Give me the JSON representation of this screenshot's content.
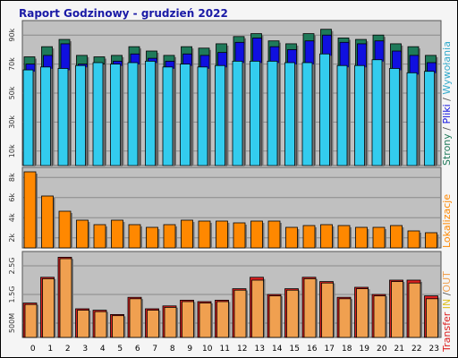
{
  "title": "Raport Godzinowy -  grudzień 2022",
  "colors": {
    "strony": "#1f7a5a",
    "pliki": "#1010e0",
    "wywolania": "#33ccee",
    "lokalizacje": "#ff8800",
    "transfer_in": "#dd2020",
    "transfer_out": "#f0a050",
    "panel_bg": "#c0c0c0",
    "grid": "#8a8a8a"
  },
  "panels": {
    "top": {
      "side_label": [
        {
          "text": "Strony",
          "color": "#1f7a5a"
        },
        {
          "text": " / ",
          "color": "#555555"
        },
        {
          "text": "Pliki",
          "color": "#1010e0"
        },
        {
          "text": " / ",
          "color": "#555555"
        },
        {
          "text": "Wywołania",
          "color": "#33aacc"
        }
      ],
      "y_ticks": [
        "90k",
        "70k",
        "50k",
        "30k",
        "10k"
      ]
    },
    "middle": {
      "side_label": [
        {
          "text": "Lokalizacje",
          "color": "#ff8800"
        }
      ],
      "y_ticks": [
        "8k",
        "6k",
        "4k",
        "2k"
      ]
    },
    "bottom": {
      "side_label": [
        {
          "text": "Transfer",
          "color": "#dd2020"
        },
        {
          "text": " IN ",
          "color": "#e0c020"
        },
        {
          "text": "/",
          "color": "#555555"
        },
        {
          "text": "OUT",
          "color": "#f0a050"
        }
      ],
      "y_ticks": [
        "2.5G",
        "1.5G",
        "500M"
      ]
    }
  },
  "chart_data": [
    {
      "type": "bar",
      "categories": [
        "0",
        "1",
        "2",
        "3",
        "4",
        "5",
        "6",
        "7",
        "8",
        "9",
        "10",
        "11",
        "12",
        "13",
        "14",
        "15",
        "16",
        "17",
        "18",
        "19",
        "20",
        "21",
        "22",
        "23"
      ],
      "ylim": [
        0,
        100000
      ],
      "series": [
        {
          "name": "Strony",
          "values": [
            75000,
            82000,
            87000,
            76000,
            75000,
            76000,
            82000,
            79000,
            76000,
            82000,
            81000,
            84000,
            89000,
            91000,
            86000,
            84000,
            91000,
            94000,
            88000,
            87000,
            90000,
            84000,
            82000,
            76000
          ]
        },
        {
          "name": "Pliki",
          "values": [
            70000,
            76000,
            84000,
            70000,
            70000,
            72000,
            77000,
            74000,
            72000,
            77000,
            76000,
            78000,
            85000,
            88000,
            82000,
            80000,
            86000,
            90000,
            85000,
            84000,
            86000,
            79000,
            76000,
            71000
          ]
        },
        {
          "name": "Wywołania",
          "values": [
            66000,
            68000,
            67000,
            69000,
            71000,
            70000,
            71000,
            72000,
            68000,
            70000,
            68000,
            69000,
            72000,
            72000,
            72000,
            71000,
            71000,
            77000,
            69000,
            69000,
            73000,
            67000,
            64000,
            65000
          ]
        }
      ]
    },
    {
      "type": "bar",
      "categories": [
        "0",
        "1",
        "2",
        "3",
        "4",
        "5",
        "6",
        "7",
        "8",
        "9",
        "10",
        "11",
        "12",
        "13",
        "14",
        "15",
        "16",
        "17",
        "18",
        "19",
        "20",
        "21",
        "22",
        "23"
      ],
      "ylim": [
        0,
        9000
      ],
      "series": [
        {
          "name": "Lokalizacje",
          "values": [
            8500,
            5800,
            4100,
            3100,
            2600,
            3100,
            2600,
            2300,
            2600,
            3100,
            3000,
            3000,
            2800,
            3000,
            3000,
            2300,
            2500,
            2600,
            2500,
            2300,
            2300,
            2500,
            1900,
            1700
          ]
        }
      ]
    },
    {
      "type": "bar",
      "categories": [
        "0",
        "1",
        "2",
        "3",
        "4",
        "5",
        "6",
        "7",
        "8",
        "9",
        "10",
        "11",
        "12",
        "13",
        "14",
        "15",
        "16",
        "17",
        "18",
        "19",
        "20",
        "21",
        "22",
        "23"
      ],
      "ylim": [
        0,
        3000000000
      ],
      "series": [
        {
          "name": "Transfer IN",
          "values": [
            1200000000,
            2100000000,
            2800000000,
            1000000000,
            950000000,
            800000000,
            1400000000,
            1000000000,
            1100000000,
            1300000000,
            1250000000,
            1300000000,
            1700000000,
            2100000000,
            1500000000,
            1700000000,
            2100000000,
            1950000000,
            1400000000,
            1750000000,
            1500000000,
            2000000000,
            2000000000,
            1450000000
          ]
        },
        {
          "name": "Transfer OUT",
          "values": [
            1150000000,
            2050000000,
            2750000000,
            950000000,
            900000000,
            760000000,
            1350000000,
            950000000,
            1050000000,
            1250000000,
            1200000000,
            1250000000,
            1650000000,
            2000000000,
            1450000000,
            1650000000,
            2050000000,
            1900000000,
            1350000000,
            1700000000,
            1450000000,
            1950000000,
            1900000000,
            1350000000
          ]
        }
      ]
    }
  ]
}
